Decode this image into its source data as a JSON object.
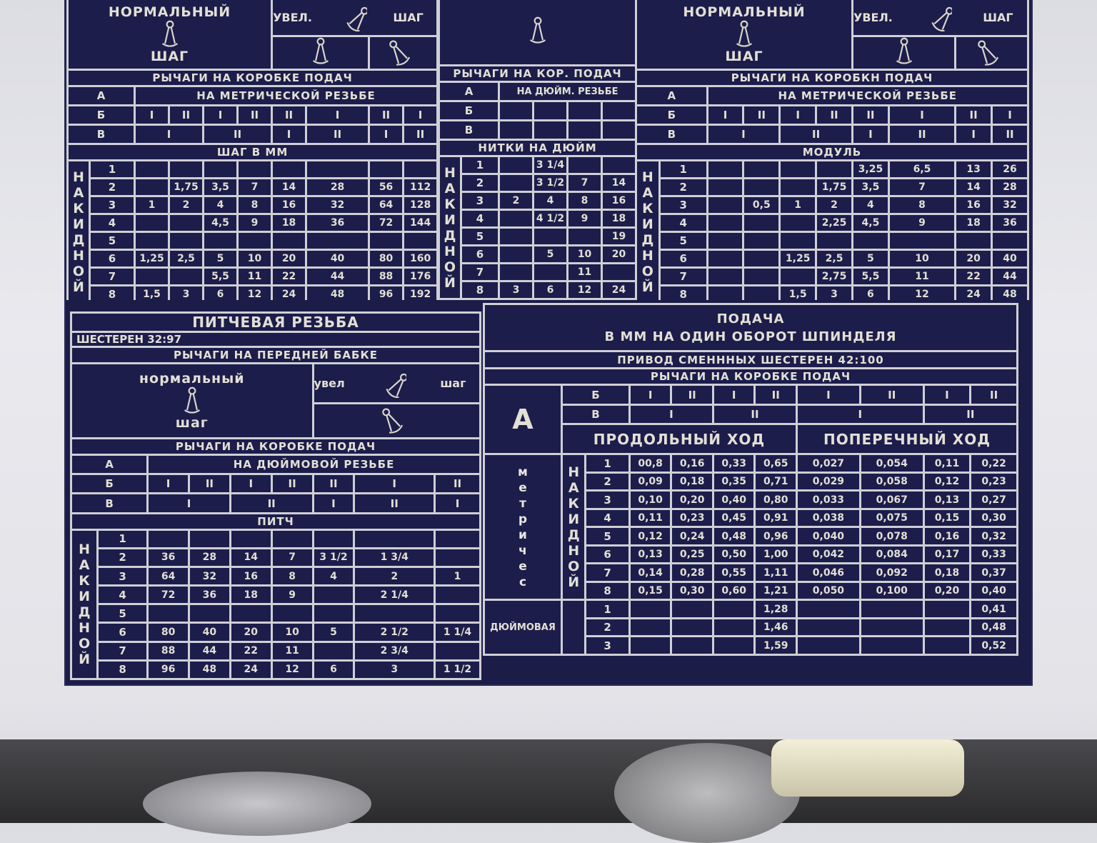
{
  "colors": {
    "panel": "#1b1c47",
    "lines": "#cfcfd6",
    "text": "#e2dfd6",
    "plate": "#e6e6eb"
  },
  "metric": {
    "normal": "НОРМАЛЬНЫЙ",
    "step": "ШАГ",
    "inc": "УВЕЛ.",
    "step2": "ШАГ",
    "levers_title": "РЫЧАГИ НА КОРОБКЕ ПОДАЧ",
    "a": "А",
    "a_text": "НА МЕТРИЧЕСКОЙ РЕЗЬБЕ",
    "b": "Б",
    "b_vals": [
      "I",
      "II",
      "I",
      "II",
      "II",
      "I",
      "II",
      "I"
    ],
    "v": "В",
    "v_vals": [
      "I",
      "II",
      "I",
      "II",
      "I",
      "II"
    ],
    "table_title": "ШАГ В ММ",
    "side_label": "НАКИДНОЙ",
    "rows": [
      {
        "n": "1",
        "vals": [
          "",
          "",
          "",
          "",
          "",
          "",
          "",
          ""
        ]
      },
      {
        "n": "2",
        "vals": [
          "",
          "1,75",
          "3,5",
          "7",
          "14",
          "28",
          "56",
          "112"
        ]
      },
      {
        "n": "3",
        "vals": [
          "1",
          "2",
          "4",
          "8",
          "16",
          "32",
          "64",
          "128"
        ]
      },
      {
        "n": "4",
        "vals": [
          "",
          "",
          "4,5",
          "9",
          "18",
          "36",
          "72",
          "144"
        ]
      },
      {
        "n": "5",
        "vals": [
          "",
          "",
          "",
          "",
          "",
          "",
          "",
          ""
        ]
      },
      {
        "n": "6",
        "vals": [
          "1,25",
          "2,5",
          "5",
          "10",
          "20",
          "40",
          "80",
          "160"
        ]
      },
      {
        "n": "7",
        "vals": [
          "",
          "",
          "5,5",
          "11",
          "22",
          "44",
          "88",
          "176"
        ]
      },
      {
        "n": "8",
        "vals": [
          "1,5",
          "3",
          "6",
          "12",
          "24",
          "48",
          "96",
          "192"
        ]
      }
    ]
  },
  "inch": {
    "levers_title": "РЫЧАГИ НА КОР. ПОДАЧ",
    "a": "А",
    "a_text": "НА ДЮЙМ. РЕЗЬБЕ",
    "b": "Б",
    "b_vals": [
      "",
      "",
      "",
      ""
    ],
    "v": "В",
    "v_vals": [
      "",
      "",
      "",
      ""
    ],
    "table_title": "НИТКИ НА ДЮЙМ",
    "side_label": "НАКИДНОЙ",
    "rows": [
      {
        "n": "1",
        "vals": [
          "",
          "3 1/4",
          "",
          ""
        ]
      },
      {
        "n": "2",
        "vals": [
          "",
          "3 1/2",
          "7",
          "14"
        ]
      },
      {
        "n": "3",
        "vals": [
          "2",
          "4",
          "8",
          "16"
        ]
      },
      {
        "n": "4",
        "vals": [
          "",
          "4 1/2",
          "9",
          "18"
        ]
      },
      {
        "n": "5",
        "vals": [
          "",
          "",
          "",
          "19"
        ]
      },
      {
        "n": "6",
        "vals": [
          "",
          "5",
          "10",
          "20"
        ]
      },
      {
        "n": "7",
        "vals": [
          "",
          "",
          "11",
          ""
        ]
      },
      {
        "n": "8",
        "vals": [
          "3",
          "6",
          "12",
          "24"
        ]
      }
    ]
  },
  "module": {
    "normal": "НОРМАЛЬНЫЙ",
    "step": "ШАГ",
    "inc": "УВЕЛ.",
    "step2": "ШАГ",
    "levers_title": "РЫЧАГИ НА КОРОБКН ПОДАЧ",
    "a": "А",
    "a_text": "НА МЕТРИЧЕСКОЙ РЕЗЬБЕ",
    "b": "Б",
    "b_vals": [
      "I",
      "II",
      "I",
      "II",
      "II",
      "I",
      "II",
      "I"
    ],
    "v": "В",
    "v_vals": [
      "I",
      "II",
      "I",
      "II",
      "I",
      "II"
    ],
    "table_title": "МОДУЛЬ",
    "side_label": "НАКИДНОЙ",
    "rows": [
      {
        "n": "1",
        "vals": [
          "",
          "",
          "",
          "",
          "3,25",
          "6,5",
          "13",
          "26"
        ]
      },
      {
        "n": "2",
        "vals": [
          "",
          "",
          "",
          "1,75",
          "3,5",
          "7",
          "14",
          "28"
        ]
      },
      {
        "n": "3",
        "vals": [
          "",
          "0,5",
          "1",
          "2",
          "4",
          "8",
          "16",
          "32"
        ]
      },
      {
        "n": "4",
        "vals": [
          "",
          "",
          "",
          "2,25",
          "4,5",
          "9",
          "18",
          "36"
        ]
      },
      {
        "n": "5",
        "vals": [
          "",
          "",
          "",
          "",
          "",
          "",
          "",
          ""
        ]
      },
      {
        "n": "6",
        "vals": [
          "",
          "",
          "1,25",
          "2,5",
          "5",
          "10",
          "20",
          "40"
        ]
      },
      {
        "n": "7",
        "vals": [
          "",
          "",
          "",
          "2,75",
          "5,5",
          "11",
          "22",
          "44"
        ]
      },
      {
        "n": "8",
        "vals": [
          "",
          "",
          "1,5",
          "3",
          "6",
          "12",
          "24",
          "48"
        ]
      }
    ]
  },
  "pitch": {
    "title": "ПИТЧЕВАЯ РЕЗЬБА",
    "gears": "ШЕСТЕРЕН 32:97",
    "headstock_levers": "РЫЧАГИ НА ПЕРЕДНЕЙ БАБКЕ",
    "normal": "нормальный",
    "step": "шаг",
    "inc": "увел",
    "step2": "шаг",
    "levers_title": "РЫЧАГИ НА КОРОБКЕ ПОДАЧ",
    "a": "А",
    "a_text": "НА ДЮЙМОВОЙ РЕЗЬБЕ",
    "b": "Б",
    "b_vals": [
      "I",
      "II",
      "I",
      "II",
      "II",
      "I",
      "II"
    ],
    "v": "В",
    "v_vals": [
      "I",
      "II",
      "I",
      "II",
      "I"
    ],
    "table_title": "ПИТЧ",
    "side_label": "НАКИДНОЙ",
    "rows": [
      {
        "n": "1",
        "vals": [
          "",
          "",
          "",
          "",
          "",
          "",
          ""
        ]
      },
      {
        "n": "2",
        "vals": [
          "36",
          "28",
          "14",
          "7",
          "3 1/2",
          "1 3/4",
          ""
        ]
      },
      {
        "n": "3",
        "vals": [
          "64",
          "32",
          "16",
          "8",
          "4",
          "2",
          "1"
        ]
      },
      {
        "n": "4",
        "vals": [
          "72",
          "36",
          "18",
          "9",
          "",
          "2 1/4",
          ""
        ]
      },
      {
        "n": "5",
        "vals": [
          "",
          "",
          "",
          "",
          "",
          "",
          ""
        ]
      },
      {
        "n": "6",
        "vals": [
          "80",
          "40",
          "20",
          "10",
          "5",
          "2 1/2",
          "1 1/4"
        ]
      },
      {
        "n": "7",
        "vals": [
          "88",
          "44",
          "22",
          "11",
          "",
          "2 3/4",
          ""
        ]
      },
      {
        "n": "8",
        "vals": [
          "96",
          "48",
          "24",
          "12",
          "6",
          "3",
          "1 1/2"
        ]
      }
    ]
  },
  "feed": {
    "title": "ПОДАЧА",
    "subtitle": "В ММ НА ОДИН ОБОРОТ ШПИНДЕЛЯ",
    "drive": "ПРИВОД СМЕНННЫХ ШЕСТЕРЕН 42:100",
    "levers_title": "РЫЧАГИ НА КОРОБКЕ ПОДАЧ",
    "a": "А",
    "b": "Б",
    "b_vals": [
      "I",
      "II",
      "I",
      "II",
      "I",
      "II",
      "I",
      "II"
    ],
    "v": "В",
    "v_vals": [
      "I",
      "II",
      "I",
      "II"
    ],
    "longitudinal": "ПРОДОЛЬНЫЙ ХОД",
    "cross": "ПОПЕРЕЧНЫЙ ХОД",
    "metric_label": "метричес",
    "inch_label": "ДЮЙМОВАЯ",
    "side_label": "НАКИДНОЙ",
    "rows": [
      {
        "n": "1",
        "vals": [
          "00,8",
          "0,16",
          "0,33",
          "0,65",
          "0,027",
          "0,054",
          "0,11",
          "0,22"
        ]
      },
      {
        "n": "2",
        "vals": [
          "0,09",
          "0,18",
          "0,35",
          "0,71",
          "0,029",
          "0,058",
          "0,12",
          "0,23"
        ]
      },
      {
        "n": "3",
        "vals": [
          "0,10",
          "0,20",
          "0,40",
          "0,80",
          "0,033",
          "0,067",
          "0,13",
          "0,27"
        ]
      },
      {
        "n": "4",
        "vals": [
          "0,11",
          "0,23",
          "0,45",
          "0,91",
          "0,038",
          "0,075",
          "0,15",
          "0,30"
        ]
      },
      {
        "n": "5",
        "vals": [
          "0,12",
          "0,24",
          "0,48",
          "0,96",
          "0,040",
          "0,078",
          "0,16",
          "0,32"
        ]
      },
      {
        "n": "6",
        "vals": [
          "0,13",
          "0,25",
          "0,50",
          "1,00",
          "0,042",
          "0,084",
          "0,17",
          "0,33"
        ]
      },
      {
        "n": "7",
        "vals": [
          "0,14",
          "0,28",
          "0,55",
          "1,11",
          "0,046",
          "0,092",
          "0,18",
          "0,37"
        ]
      },
      {
        "n": "8",
        "vals": [
          "0,15",
          "0,30",
          "0,60",
          "1,21",
          "0,050",
          "0,100",
          "0,20",
          "0,40"
        ]
      }
    ],
    "inch_rows": [
      {
        "n": "1",
        "vals": [
          "",
          "",
          "",
          "1,28",
          "",
          "",
          "",
          "0,41"
        ]
      },
      {
        "n": "2",
        "vals": [
          "",
          "",
          "",
          "1,46",
          "",
          "",
          "",
          "0,48"
        ]
      },
      {
        "n": "3",
        "vals": [
          "",
          "",
          "",
          "1,59",
          "",
          "",
          "",
          "0,52"
        ]
      }
    ]
  }
}
